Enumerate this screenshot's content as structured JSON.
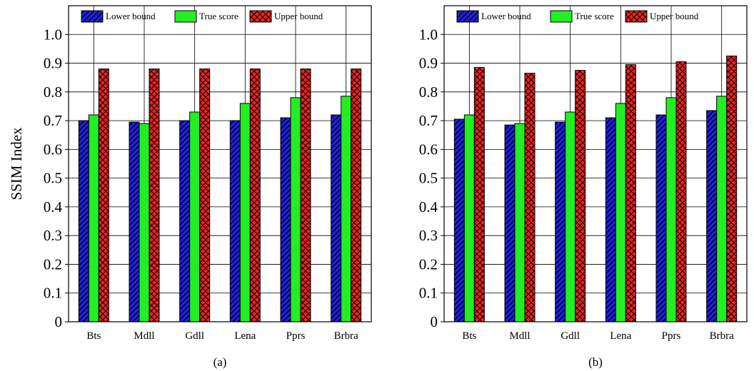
{
  "chart_data": [
    {
      "type": "bar",
      "panel_label": "(a)",
      "ylabel": "SSIM Index",
      "ylim": [
        0,
        1.1
      ],
      "yticks": [
        "0",
        "0.1",
        "0.2",
        "0.3",
        "0.4",
        "0.5",
        "0.6",
        "0.7",
        "0.8",
        "0.9",
        "1.0"
      ],
      "grid": true,
      "legend": "top",
      "categories": [
        "Bts",
        "Mdll",
        "Gdll",
        "Lena",
        "Pprs",
        "Brbra"
      ],
      "series": [
        {
          "name": "Lower bound",
          "color": "#1f1fe0",
          "pattern": "diagonal-hatch",
          "values": [
            0.7,
            0.695,
            0.7,
            0.7,
            0.71,
            0.72
          ]
        },
        {
          "name": "True score",
          "color": "#22ee22",
          "pattern": "solid",
          "values": [
            0.72,
            0.69,
            0.73,
            0.76,
            0.78,
            0.785
          ]
        },
        {
          "name": "Upper bound",
          "color": "#ee2222",
          "pattern": "crosshatch",
          "values": [
            0.88,
            0.88,
            0.88,
            0.88,
            0.88,
            0.88
          ]
        }
      ]
    },
    {
      "type": "bar",
      "panel_label": "(b)",
      "ylim": [
        0,
        1.1
      ],
      "yticks": [
        "0",
        "0.1",
        "0.2",
        "0.3",
        "0.4",
        "0.5",
        "0.6",
        "0.7",
        "0.8",
        "0.9",
        "1.0"
      ],
      "grid": true,
      "legend": "top",
      "categories": [
        "Bts",
        "Mdll",
        "Gdll",
        "Lena",
        "Pprs",
        "Brbra"
      ],
      "series": [
        {
          "name": "Lower bound",
          "color": "#1f1fe0",
          "pattern": "diagonal-hatch",
          "values": [
            0.705,
            0.685,
            0.695,
            0.71,
            0.72,
            0.735
          ]
        },
        {
          "name": "True score",
          "color": "#22ee22",
          "pattern": "solid",
          "values": [
            0.72,
            0.69,
            0.73,
            0.76,
            0.78,
            0.785
          ]
        },
        {
          "name": "Upper bound",
          "color": "#ee2222",
          "pattern": "crosshatch",
          "values": [
            0.885,
            0.865,
            0.875,
            0.895,
            0.905,
            0.925
          ]
        }
      ]
    }
  ]
}
